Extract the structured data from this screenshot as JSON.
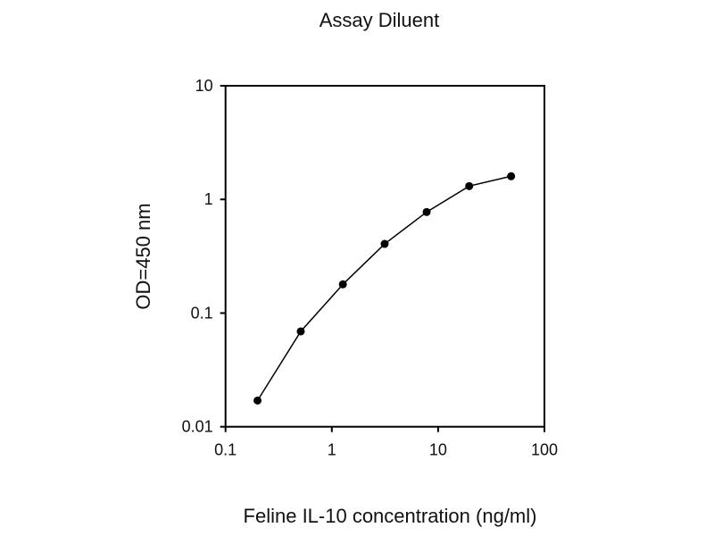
{
  "chart_data": {
    "type": "line",
    "title": "Assay Diluent",
    "xlabel": "Feline IL-10 concentration (ng/ml)",
    "ylabel": "OD=450 nm",
    "x_scale": "log",
    "y_scale": "log",
    "xlim": [
      0.1,
      100
    ],
    "ylim": [
      0.01,
      10
    ],
    "x_ticks": [
      "0.1",
      "1",
      "10",
      "100"
    ],
    "y_ticks": [
      "0.01",
      "0.1",
      "1",
      "10"
    ],
    "grid": false,
    "legend": "none",
    "marker": "circle",
    "color": "#000000",
    "series": [
      {
        "x": [
          0.2,
          0.51,
          1.27,
          3.14,
          7.8,
          19.6,
          48.6
        ],
        "y": [
          0.017,
          0.069,
          0.179,
          0.406,
          0.775,
          1.31,
          1.6
        ]
      }
    ]
  }
}
